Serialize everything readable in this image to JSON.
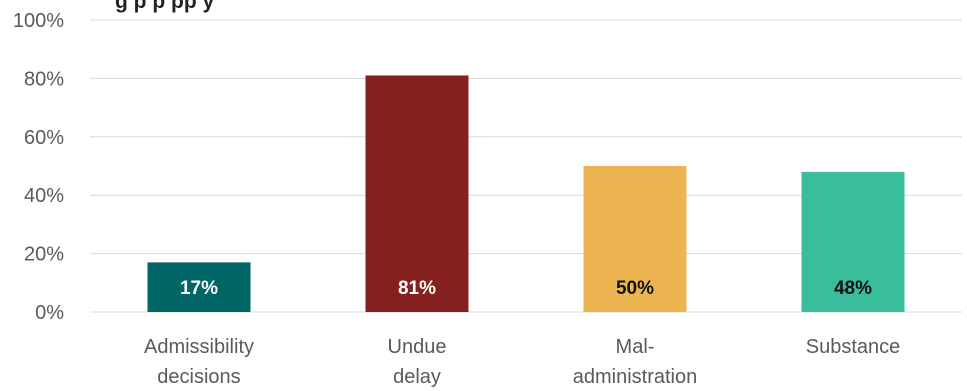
{
  "chart_data": {
    "type": "bar",
    "title": "g      p                p   pp         y",
    "categories": [
      [
        "Admissibility",
        "decisions"
      ],
      [
        "Undue",
        "delay"
      ],
      [
        "Mal-",
        "administration"
      ],
      [
        "Substance"
      ]
    ],
    "values": [
      17,
      81,
      50,
      48
    ],
    "data_labels": [
      "17%",
      "81%",
      "50%",
      "48%"
    ],
    "bar_colors": [
      "#006666",
      "#86201f",
      "#edb552",
      "#3abd9c"
    ],
    "label_colors": [
      "#ffffff",
      "#ffffff",
      "#111111",
      "#111111"
    ],
    "ylim": [
      0,
      100
    ],
    "yticks": [
      0,
      20,
      40,
      60,
      80,
      100
    ],
    "ytick_labels": [
      "0%",
      "20%",
      "40%",
      "60%",
      "80%",
      "100%"
    ],
    "grid": true,
    "legend": "none"
  }
}
